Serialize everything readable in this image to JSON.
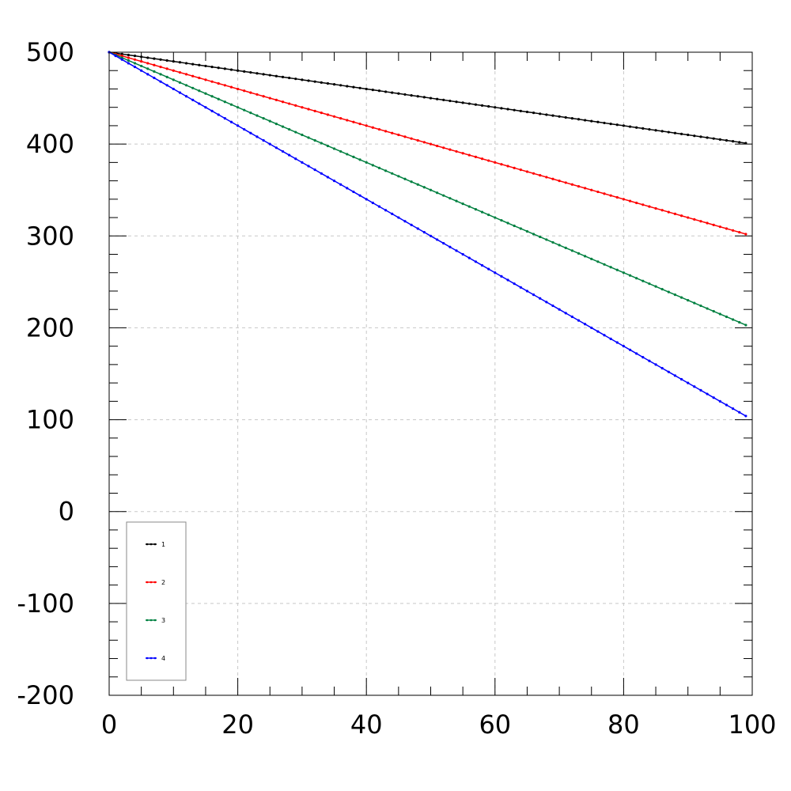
{
  "chart_data": {
    "type": "line",
    "title": "",
    "xlabel": "",
    "ylabel": "",
    "xlim": [
      0,
      100
    ],
    "ylim": [
      -200,
      500
    ],
    "x_ticks": [
      0,
      20,
      40,
      60,
      80,
      100
    ],
    "y_ticks": [
      -200,
      -100,
      0,
      100,
      200,
      300,
      400,
      500
    ],
    "grid": true,
    "legend_position": "bottom-left",
    "x": {
      "start": 0,
      "end": 99,
      "step": 1
    },
    "series": [
      {
        "name": "1",
        "color": "#000000",
        "start": 500,
        "end": 401
      },
      {
        "name": "2",
        "color": "#ff0000",
        "start": 500,
        "end": 302
      },
      {
        "name": "3",
        "color": "#008040",
        "start": 500,
        "end": 203
      },
      {
        "name": "4",
        "color": "#0000ff",
        "start": 500,
        "end": 104
      }
    ]
  }
}
